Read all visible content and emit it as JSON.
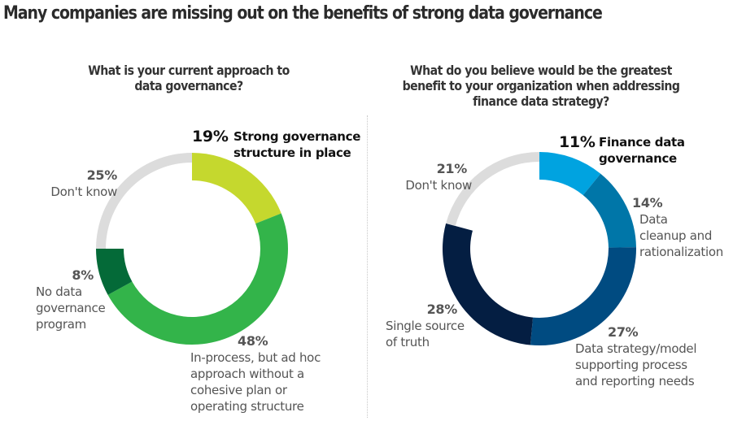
{
  "title": "Many companies are missing out on the benefits of strong data governance",
  "chart_data": [
    {
      "type": "pie",
      "variant": "donut",
      "title": "What is your current approach to data governance?",
      "start": "top",
      "direction": "clockwise",
      "slices": [
        {
          "label": "Strong governance structure in place",
          "value": 19,
          "pct_label": "19%",
          "color": "#c5d82e",
          "highlight": true
        },
        {
          "label": "In-process, but ad hoc approach without a cohesive plan or operating structure",
          "value": 48,
          "pct_label": "48%",
          "color": "#33b44a",
          "highlight": false
        },
        {
          "label": "No data governance program",
          "value": 8,
          "pct_label": "8%",
          "color": "#046a38",
          "highlight": false
        },
        {
          "label": "Don't know",
          "value": 25,
          "pct_label": "25%",
          "color": "#dcdcdc",
          "highlight": false,
          "muted": true
        }
      ]
    },
    {
      "type": "pie",
      "variant": "donut",
      "title": "What do you believe would be the greatest benefit to your organization when addressing finance data strategy?",
      "start": "top",
      "direction": "clockwise",
      "slices": [
        {
          "label": "Finance data governance",
          "value": 11,
          "pct_label": "11%",
          "color": "#00a3e0",
          "highlight": true
        },
        {
          "label": "Data cleanup and rationalization",
          "value": 14,
          "pct_label": "14%",
          "color": "#0076a8",
          "highlight": false
        },
        {
          "label": "Data strategy/model supporting process and reporting needs",
          "value": 27,
          "pct_label": "27%",
          "color": "#004b81",
          "highlight": false
        },
        {
          "label": "Single source of truth",
          "value": 28,
          "pct_label": "28%",
          "color": "#041e42",
          "highlight": false
        },
        {
          "label": "Don't know",
          "value": 21,
          "pct_label": "21%",
          "color": "#dcdcdc",
          "highlight": false,
          "muted": true
        }
      ]
    }
  ],
  "labels": {
    "left": {
      "question_line1": "What is your current approach to",
      "question_line2": "data governance?",
      "s0": {
        "pct": "19%",
        "lines": [
          "Strong governance",
          "structure in place"
        ]
      },
      "s1": {
        "pct": "48%",
        "lines": [
          "In-process, but ad hoc",
          "approach without a",
          "cohesive plan or",
          "operating structure"
        ]
      },
      "s2": {
        "pct": "8%",
        "lines": [
          "No data",
          "governance",
          "program"
        ]
      },
      "s3": {
        "pct": "25%",
        "lines": [
          "Don't know"
        ]
      }
    },
    "right": {
      "question_line1": "What do you believe would be the greatest",
      "question_line2": "benefit to your organization when addressing",
      "question_line3": "finance data strategy?",
      "s0": {
        "pct": "11%",
        "lines": [
          "Finance data",
          "governance"
        ]
      },
      "s1": {
        "pct": "14%",
        "lines": [
          "Data",
          "cleanup and",
          "rationalization"
        ]
      },
      "s2": {
        "pct": "27%",
        "lines": [
          "Data strategy/model",
          "supporting process",
          "and reporting needs"
        ]
      },
      "s3": {
        "pct": "28%",
        "lines": [
          "Single source",
          "of truth"
        ]
      },
      "s4": {
        "pct": "21%",
        "lines": [
          "Don't know"
        ]
      }
    }
  }
}
